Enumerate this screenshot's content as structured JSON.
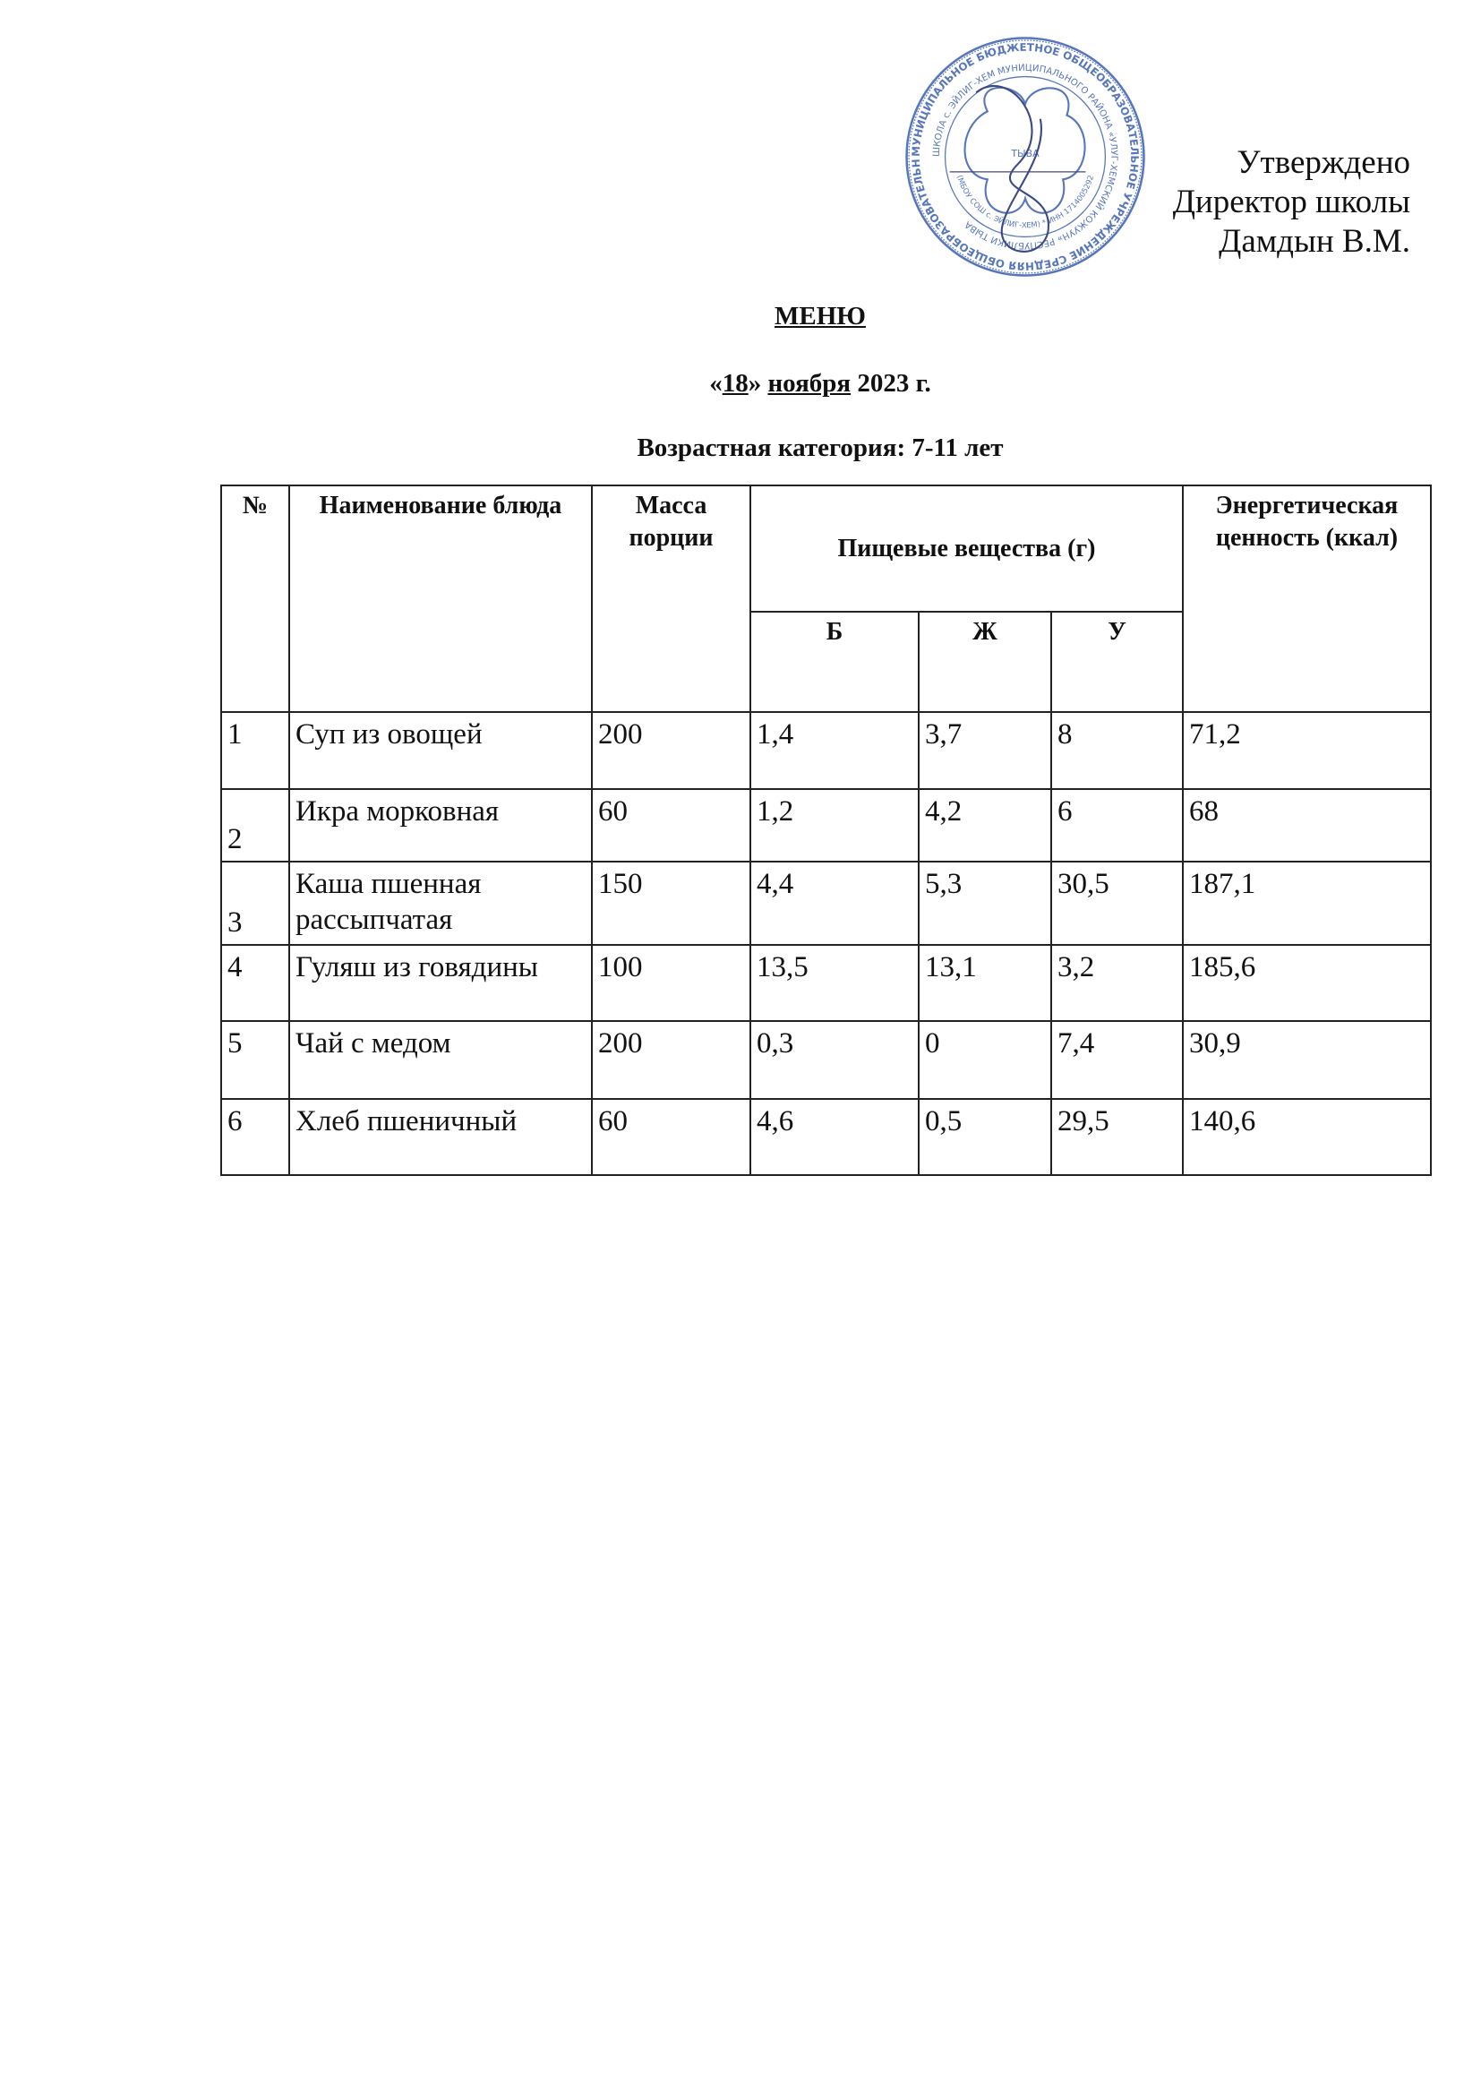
{
  "approval": {
    "line1": "Утверждено",
    "line2": "Директор школы",
    "line3": "Дамдын В.М."
  },
  "stamp": {
    "text_outer": "МУНИЦИПАЛЬНОЕ БЮДЖЕТНОЕ ОБЩЕОБРАЗОВАТЕЛЬНОЕ УЧРЕЖДЕНИЕ СРЕДНЯЯ ОБЩЕОБРАЗОВАТЕЛЬНАЯ",
    "text_inner": "ШКОЛА с. ЭЙЛИГ-ХЕМ МУНИЦИПАЛЬНОГО РАЙОНА «УЛУГ-ХЕМСКИЙ КОЖУУН» РЕСПУБЛИКИ ТЫВА",
    "text_bottom": "(МБОУ СОШ с. ЭЙЛИГ-ХЕМ) * ИНН 1714005292",
    "center_label": "ТЫВА",
    "color": "#3a5fb0"
  },
  "title": "МЕНЮ",
  "date": {
    "open_quote": "«",
    "day": "18",
    "close_quote": "»",
    "month": "ноября",
    "year": "2023 г."
  },
  "age_category": "Возрастная категория: 7-11 лет",
  "table": {
    "headers": {
      "number": "№",
      "name": "Наименование блюда",
      "mass": "Масса порции",
      "nutrients": "Пищевые вещества (г)",
      "energy": "Энергетическая ценность (ккал)",
      "protein": "Б",
      "fat": "Ж",
      "carbs": "У"
    },
    "rows": [
      {
        "n": "1",
        "name": "Суп из овощей",
        "mass": "200",
        "b": "1,4",
        "zh": "3,7",
        "u": "8",
        "kcal": "71,2"
      },
      {
        "n": "2",
        "name": "Икра морковная",
        "mass": "60",
        "b": "1,2",
        "zh": "4,2",
        "u": "6",
        "kcal": "68"
      },
      {
        "n": "3",
        "name": "Каша пшенная рассыпчатая",
        "mass": "150",
        "b": "4,4",
        "zh": "5,3",
        "u": "30,5",
        "kcal": "187,1"
      },
      {
        "n": "4",
        "name": "Гуляш из говядины",
        "mass": "100",
        "b": "13,5",
        "zh": "13,1",
        "u": "3,2",
        "kcal": "185,6"
      },
      {
        "n": "5",
        "name": "Чай с медом",
        "mass": "200",
        "b": "0,3",
        "zh": "0",
        "u": "7,4",
        "kcal": "30,9"
      },
      {
        "n": "6",
        "name": "Хлеб пшеничный",
        "mass": "60",
        "b": "4,6",
        "zh": "0,5",
        "u": "29,5",
        "kcal": "140,6"
      }
    ]
  }
}
